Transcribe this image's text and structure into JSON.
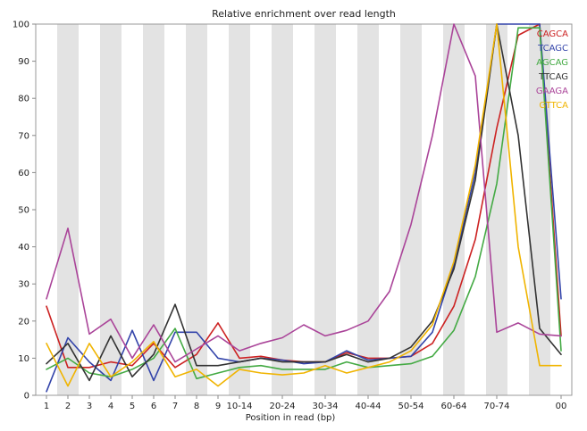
{
  "chart_data": {
    "type": "line",
    "title": "Relative enrichment over read length",
    "xlabel": "Position in read (bp)",
    "ylabel": "",
    "ylim": [
      0,
      100
    ],
    "yticks": [
      0,
      10,
      20,
      30,
      40,
      50,
      60,
      70,
      80,
      90,
      100
    ],
    "categories": [
      "1",
      "2",
      "3",
      "4",
      "5",
      "6",
      "7",
      "8",
      "9",
      "10-14",
      "15-19",
      "20-24",
      "25-29",
      "30-34",
      "35-39",
      "40-44",
      "45-49",
      "50-54",
      "55-59",
      "60-64",
      "65-69",
      "70-74",
      "75-79",
      "80-84",
      "85-89"
    ],
    "xtick_labels": [
      "1",
      "2",
      "3",
      "4",
      "5",
      "6",
      "7",
      "8",
      "9",
      "10-14",
      "20-24",
      "30-34",
      "40-44",
      "50-54",
      "60-64",
      "70-74",
      "00"
    ],
    "xtick_category_index": [
      0,
      1,
      2,
      3,
      4,
      5,
      6,
      7,
      8,
      9,
      11,
      13,
      15,
      17,
      19,
      21,
      24
    ],
    "grid": "alternating vertical bands",
    "legend_position": "top-right",
    "series": [
      {
        "name": "CAGCA",
        "color": "#cc2222",
        "values": [
          24,
          7.5,
          7.5,
          9,
          8,
          14,
          7.5,
          11,
          19.5,
          10,
          10.5,
          9.5,
          9,
          9,
          11.5,
          10,
          10,
          10.5,
          14,
          24,
          42,
          72,
          97,
          100,
          16
        ]
      },
      {
        "name": "TCAGC",
        "color": "#3344aa",
        "values": [
          1,
          15.5,
          9,
          4,
          17.5,
          4,
          17,
          17,
          10,
          9,
          10,
          9.5,
          8.5,
          9,
          12,
          9.5,
          10,
          10.5,
          17,
          35,
          60,
          100,
          100,
          100,
          26
        ]
      },
      {
        "name": "AGCAG",
        "color": "#44aa44",
        "values": [
          7,
          10,
          6,
          5,
          7,
          10,
          18,
          4.5,
          6,
          7.5,
          8,
          7,
          7,
          7,
          9,
          7.5,
          8,
          8.5,
          10.5,
          17.5,
          32,
          57,
          99,
          99,
          12
        ]
      },
      {
        "name": "TTCAG",
        "color": "#333333",
        "values": [
          8.5,
          14,
          4,
          16,
          5,
          11,
          24.5,
          8,
          8,
          9,
          10,
          9,
          9,
          9,
          11,
          9,
          10,
          13,
          20,
          34,
          58,
          100,
          70,
          18,
          11
        ]
      },
      {
        "name": "GAAGA",
        "color": "#aa4499",
        "values": [
          26,
          45,
          16.5,
          20.5,
          10,
          19,
          9,
          12.5,
          16,
          12,
          14,
          15.5,
          19,
          16,
          17.5,
          20,
          28,
          46,
          70,
          100,
          86,
          17,
          19.5,
          16.5,
          16
        ]
      },
      {
        "name": "GTTCA",
        "color": "#f0b400",
        "values": [
          14,
          2.5,
          14,
          5,
          9,
          14.5,
          5,
          7,
          2.5,
          7,
          6,
          5.5,
          6,
          8,
          6,
          7.5,
          9,
          12,
          19,
          36,
          62,
          100,
          40,
          8,
          8
        ]
      }
    ]
  }
}
